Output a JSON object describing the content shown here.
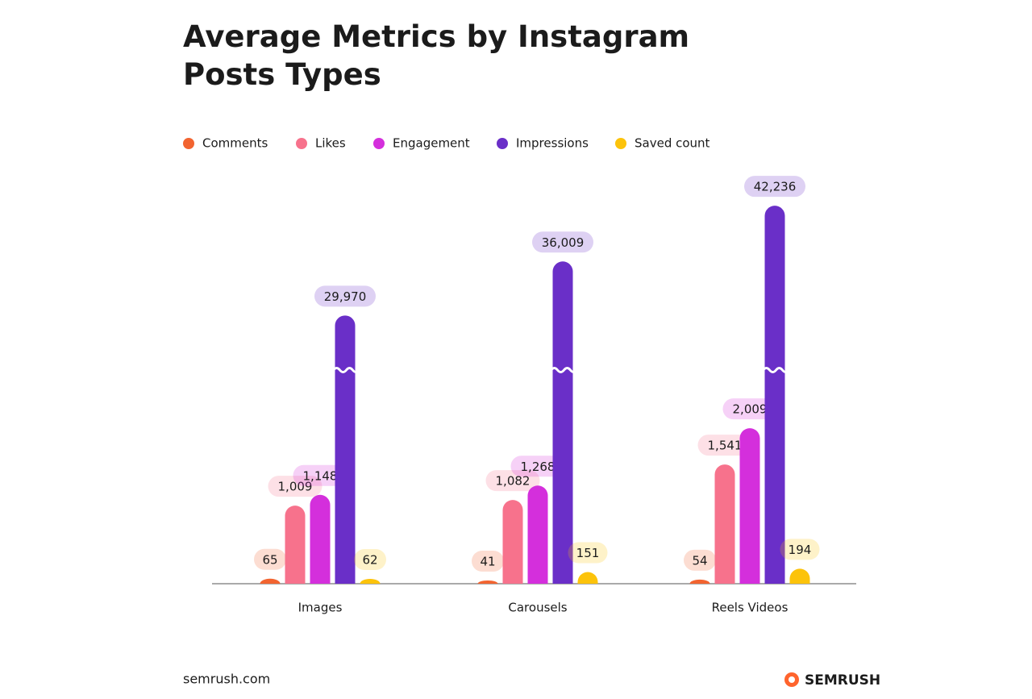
{
  "chart_data": {
    "type": "bar",
    "title": "Average Metrics by Instagram Posts Types",
    "categories": [
      "Images",
      "Carousels",
      "Reels Videos"
    ],
    "series": [
      {
        "name": "Comments",
        "color": "#f26430",
        "values": [
          65,
          41,
          54
        ]
      },
      {
        "name": "Likes",
        "color": "#f7728c",
        "values": [
          1009,
          1082,
          1541
        ],
        "value_labels": [
          "1,009",
          "1,082",
          "1,541"
        ]
      },
      {
        "name": "Engagement",
        "color": "#d42fdc",
        "values": [
          1148,
          1268,
          2009
        ],
        "value_labels": [
          "1,148",
          "1,268",
          "2,009"
        ]
      },
      {
        "name": "Impressions",
        "color": "#6a2fc8",
        "values": [
          29970,
          36009,
          42236
        ],
        "value_labels": [
          "29,970",
          "36,009",
          "42,236"
        ]
      },
      {
        "name": "Saved count",
        "color": "#fcc30b",
        "values": [
          62,
          151,
          194
        ]
      }
    ],
    "axis_break": true,
    "footer": "semrush.com",
    "brand": "SEMRUSH"
  }
}
